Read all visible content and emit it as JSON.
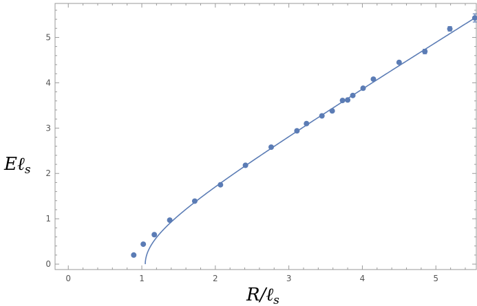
{
  "chart_data": {
    "type": "scatter",
    "xlabel": {
      "main": "R/ℓ",
      "sub": "s"
    },
    "ylabel": {
      "main": "Eℓ",
      "sub": "s"
    },
    "xlim": [
      -0.18,
      5.55
    ],
    "ylim": [
      -0.12,
      5.75
    ],
    "xticks": [
      0,
      1,
      2,
      3,
      4,
      5
    ],
    "yticks": [
      0,
      1,
      2,
      3,
      4,
      5
    ],
    "grid": false,
    "color": "#5b7cb5",
    "series": [
      {
        "kind": "points",
        "x": [
          0.89,
          1.02,
          1.17,
          1.38,
          1.72,
          2.07,
          2.41,
          2.76,
          3.11,
          3.24,
          3.45,
          3.59,
          3.73,
          3.8,
          3.87,
          4.01,
          4.15,
          4.5,
          4.85,
          5.19,
          5.53
        ],
        "y": [
          0.2,
          0.44,
          0.65,
          0.97,
          1.39,
          1.75,
          2.18,
          2.58,
          2.94,
          3.1,
          3.27,
          3.38,
          3.61,
          3.62,
          3.72,
          3.88,
          4.08,
          4.45,
          4.69,
          5.19,
          5.43
        ],
        "yerr": [
          0,
          0,
          0,
          0,
          0,
          0,
          0,
          0,
          0,
          0,
          0.03,
          0,
          0,
          0.03,
          0,
          0,
          0,
          0,
          0.05,
          0.05,
          0.09
        ]
      },
      {
        "kind": "fit-curve",
        "sigma": 1.0,
        "c": 1.047
      }
    ]
  }
}
